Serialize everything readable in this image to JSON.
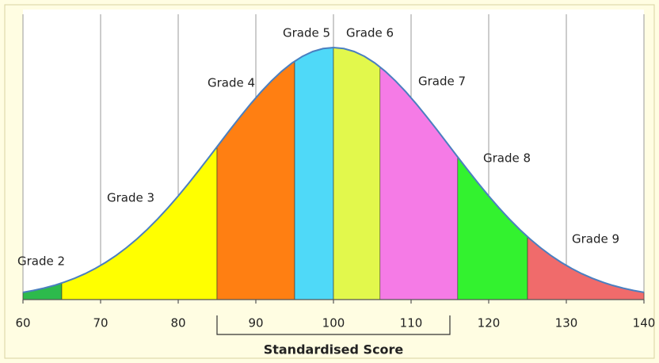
{
  "chart_data": {
    "type": "area",
    "x_label": "Standardised Score",
    "xlim": [
      60,
      140
    ],
    "xticks": [
      60,
      70,
      80,
      90,
      100,
      110,
      120,
      130,
      140
    ],
    "grid": true,
    "distribution": {
      "mean": 100,
      "sd": 15
    },
    "bracket": [
      85,
      115
    ],
    "regions": [
      {
        "name": "Grade 2",
        "color": "#2dba4c",
        "range": [
          60,
          65
        ]
      },
      {
        "name": "Grade 3",
        "color": "#ffff00",
        "range": [
          65,
          85
        ]
      },
      {
        "name": "Grade 4",
        "color": "#ff7f12",
        "range": [
          85,
          95
        ]
      },
      {
        "name": "Grade 5",
        "color": "#4fd9f8",
        "range": [
          95,
          100
        ]
      },
      {
        "name": "Grade 6",
        "color": "#e2f84c",
        "range": [
          100,
          106
        ]
      },
      {
        "name": "Grade 7",
        "color": "#f57be6",
        "range": [
          106,
          116
        ]
      },
      {
        "name": "Grade 8",
        "color": "#33f22f",
        "range": [
          116,
          125
        ]
      },
      {
        "name": "Grade 9",
        "color": "#f06b6b",
        "range": [
          125,
          140
        ]
      }
    ]
  }
}
